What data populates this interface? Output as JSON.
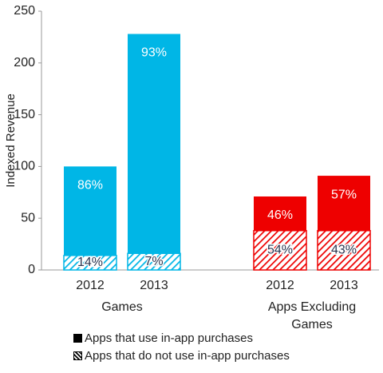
{
  "chart_data": {
    "type": "stacked-bar",
    "y_label": "Indexed Revenue",
    "categories": [
      "2012",
      "2013",
      "2012",
      "2013"
    ],
    "groups": [
      "Games",
      "Apps Excluding Games"
    ],
    "colors": [
      "#00b6e6",
      "#00b6e6",
      "#ee0000",
      "#ee0000"
    ],
    "series": [
      {
        "name": "Apps that do not use in-app purchases",
        "pattern": "hatched",
        "color": "#000000",
        "values": [
          14,
          16,
          38,
          38
        ],
        "labels": [
          "14%",
          "7%",
          "54%",
          "43%"
        ]
      },
      {
        "name": "Apps that use in-app purchases",
        "pattern": "solid",
        "color": "#000000",
        "values": [
          86,
          212,
          33,
          53
        ],
        "labels": [
          "86%",
          "93%",
          "46%",
          "57%"
        ]
      }
    ],
    "ylim": [
      0,
      250
    ],
    "yticks": [
      0,
      50,
      100,
      150,
      200,
      250
    ],
    "grid": false
  }
}
